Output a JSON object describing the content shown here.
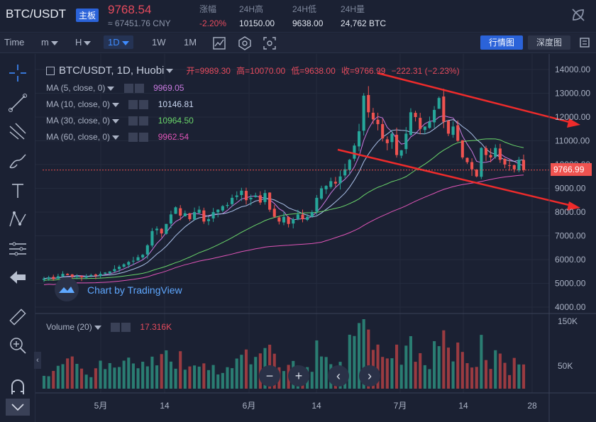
{
  "header": {
    "symbol": "BTC/USDT",
    "badge": "主板",
    "price": "9768.54",
    "cny": "≈ 67451.76 CNY",
    "stats": [
      {
        "label": "涨幅",
        "value": "-2.20%",
        "red": true
      },
      {
        "label": "24H高",
        "value": "10150.00",
        "red": false
      },
      {
        "label": "24H低",
        "value": "9638.00",
        "red": false
      },
      {
        "label": "24H量",
        "value": "24,762 BTC",
        "red": false
      }
    ]
  },
  "toolbar": {
    "time_label": "Time",
    "m_label": "m",
    "h_label": "H",
    "d1_label": "1D",
    "w1_label": "1W",
    "m1_label": "1M",
    "quote_button": "行情图",
    "depth_button": "深度图"
  },
  "legend": {
    "title": "BTC/USDT, 1D, Huobi",
    "open_label": "开=",
    "open": "9989.30",
    "high_label": "高=",
    "high": "10070.00",
    "low_label": "低=",
    "low": "9638.00",
    "close_label": "收=",
    "close": "9766.99",
    "change": "−222.31 (−2.23%)",
    "ma": [
      {
        "label": "MA (5, close, 0)",
        "value": "9969.05",
        "color": "#c97ae0"
      },
      {
        "label": "MA (10, close, 0)",
        "value": "10146.81",
        "color": "#aac0e8"
      },
      {
        "label": "MA (30, close, 0)",
        "value": "10964.50",
        "color": "#6ad56a"
      },
      {
        "label": "MA (60, close, 0)",
        "value": "9962.54",
        "color": "#e055b8"
      }
    ],
    "volume_label": "Volume (20)",
    "volume_value": "17.316K"
  },
  "watermark": "Chart by TradingView",
  "chart_data": {
    "type": "candlestick",
    "y_axis_ticks": [
      "14000.00",
      "13000.00",
      "12000.00",
      "11000.00",
      "10000.00",
      "9000.00",
      "8000.00",
      "7000.00",
      "6000.00",
      "5000.00",
      "4000.00"
    ],
    "y_range": [
      3700,
      14300
    ],
    "last_price_label": "9766.99",
    "last_price": 9766.99,
    "volume_axis_ticks": [
      "150K",
      "50K"
    ],
    "x_axis_ticks": [
      "5月",
      "14",
      "6月",
      "14",
      "7月",
      "14",
      "28"
    ],
    "colors": {
      "up": "#26a69a",
      "down": "#ef5350"
    },
    "closes": [
      5200,
      5250,
      5180,
      5300,
      5400,
      5350,
      5280,
      5320,
      5250,
      5300,
      5350,
      5320,
      5400,
      5450,
      5500,
      5600,
      5700,
      5800,
      5900,
      5950,
      6100,
      6200,
      6600,
      7200,
      7300,
      7100,
      7500,
      7900,
      8200,
      7850,
      7950,
      7700,
      8000,
      8100,
      7600,
      7700,
      8000,
      8100,
      8250,
      8300,
      8600,
      8700,
      8900,
      8500,
      8600,
      8700,
      8400,
      8800,
      8100,
      7800,
      7600,
      7800,
      7500,
      7700,
      7900,
      7700,
      7800,
      8000,
      8600,
      9000,
      9100,
      9300,
      9200,
      9500,
      9800,
      10200,
      10800,
      11400,
      12900,
      12200,
      11900,
      11700,
      11100,
      10900,
      11300,
      10400,
      10600,
      11300,
      12200,
      12000,
      11500,
      11600,
      11800,
      12300,
      12800,
      11800,
      11300,
      11600,
      11000,
      10300,
      10100,
      9800,
      9500,
      10700,
      10400,
      10300,
      10700,
      10200,
      10000,
      9950,
      9800,
      10200,
      9770
    ],
    "volume_levels_relative": "varies 0-150K, peak near late June",
    "trend_lines": [
      "descending upper arrow",
      "descending lower arrow"
    ]
  },
  "nav": {
    "minus": "−",
    "plus": "+",
    "left": "‹",
    "right": "›"
  }
}
